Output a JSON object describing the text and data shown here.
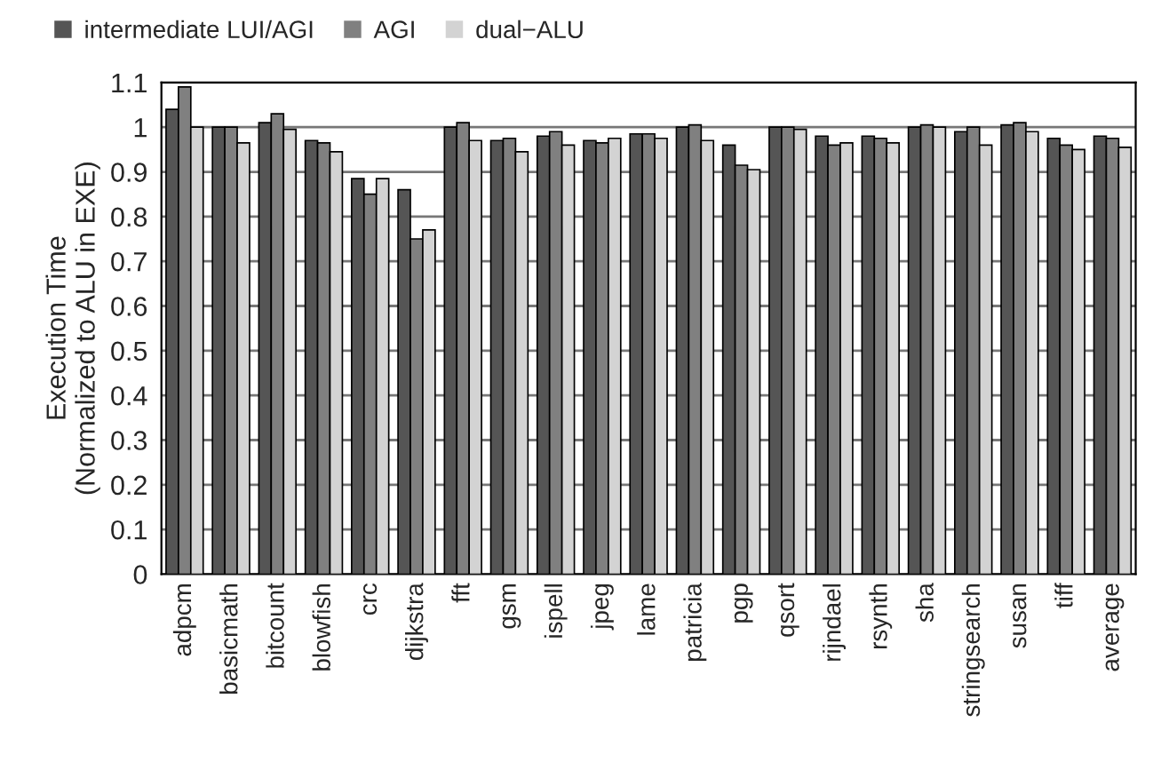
{
  "chart_data": {
    "type": "bar",
    "ylabel": "Execution Time\n(Normalized to ALU in EXE)",
    "categories": [
      "adpcm",
      "basicmath",
      "bitcount",
      "blowfish",
      "crc",
      "dijkstra",
      "fft",
      "gsm",
      "ispell",
      "jpeg",
      "lame",
      "patricia",
      "pgp",
      "qsort",
      "rijndael",
      "rsynth",
      "sha",
      "stringsearch",
      "susan",
      "tiff",
      "average"
    ],
    "series": [
      {
        "name": "intermediate LUI/AGI",
        "color": "#555555",
        "values": [
          1.04,
          1.0,
          1.01,
          0.97,
          0.885,
          0.86,
          1.0,
          0.97,
          0.98,
          0.97,
          0.985,
          1.0,
          0.96,
          1.0,
          0.98,
          0.98,
          1.0,
          0.99,
          1.005,
          0.975,
          0.98
        ]
      },
      {
        "name": "AGI",
        "color": "#808080",
        "values": [
          1.09,
          1.0,
          1.03,
          0.965,
          0.85,
          0.75,
          1.01,
          0.975,
          0.99,
          0.965,
          0.985,
          1.005,
          0.915,
          1.0,
          0.96,
          0.975,
          1.005,
          1.0,
          1.01,
          0.96,
          0.975
        ]
      },
      {
        "name": "dual−ALU",
        "color": "#d3d3d3",
        "values": [
          1.0,
          0.965,
          0.995,
          0.945,
          0.885,
          0.77,
          0.97,
          0.945,
          0.96,
          0.975,
          0.975,
          0.97,
          0.905,
          0.995,
          0.965,
          0.965,
          1.0,
          0.96,
          0.99,
          0.95,
          0.955
        ]
      }
    ],
    "ylim": [
      0,
      1.1
    ],
    "yticks": [
      0,
      0.1,
      0.2,
      0.3,
      0.4,
      0.5,
      0.6,
      0.7,
      0.8,
      0.9,
      1,
      1.1
    ],
    "grid": "y",
    "legend": "top left"
  }
}
